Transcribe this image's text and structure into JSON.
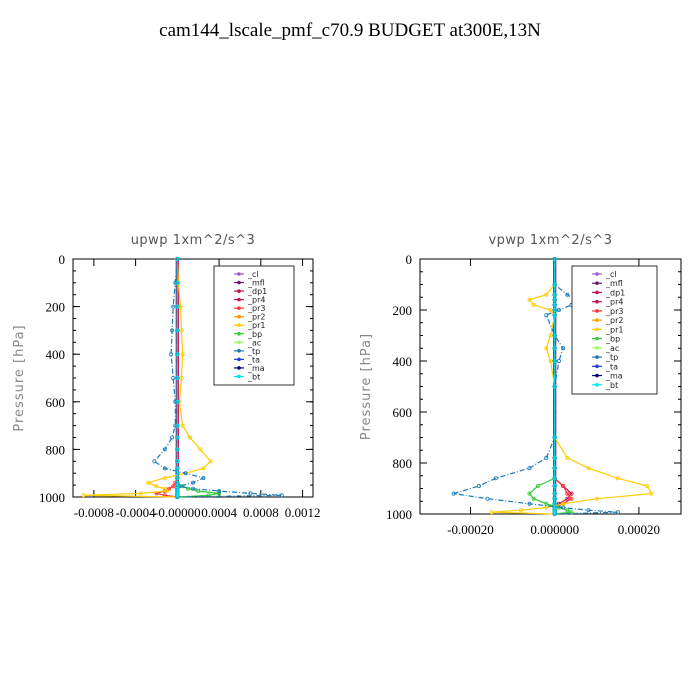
{
  "page": {
    "title": "cam144_lscale_pmf_c70.9  BUDGET at300E,13N"
  },
  "legend_entries": [
    {
      "label": "_cl",
      "color": "#9b59d0"
    },
    {
      "label": "_mfl",
      "color": "#6a1a6a"
    },
    {
      "label": "_dp1",
      "color": "#c0144c"
    },
    {
      "label": "_pr4",
      "color": "#c0144c"
    },
    {
      "label": "_pr3",
      "color": "#ff3333"
    },
    {
      "label": "_pr2",
      "color": "#ff9900"
    },
    {
      "label": "_pr1",
      "color": "#ffcc00"
    },
    {
      "label": "_bp",
      "color": "#33cc33"
    },
    {
      "label": "_ac",
      "color": "#99ff66"
    },
    {
      "label": "_tp",
      "color": "#1a7ab8"
    },
    {
      "label": "_ta",
      "color": "#1f3fd6"
    },
    {
      "label": "_ma",
      "color": "#000080"
    },
    {
      "label": "_bt",
      "color": "#00e5ee"
    }
  ],
  "chart_data": [
    {
      "type": "line",
      "title": "upwp   1xm^2/s^3",
      "ylabel": "Pressure [hPa]",
      "xlabel": "",
      "xlim": [
        -0.001,
        0.0013
      ],
      "ylim": [
        1000,
        0
      ],
      "y_inverted": true,
      "xticks": [
        -0.0008,
        -0.0004,
        0,
        0.0004,
        0.0008,
        0.0012
      ],
      "xtick_labels": [
        "-0.0008",
        "-0.0004",
        "-0.00000",
        "0.0004",
        "0.0008",
        "0.0012"
      ],
      "yticks": [
        0,
        200,
        400,
        600,
        800,
        1000
      ],
      "ytick_labels": [
        "0",
        "200",
        "400",
        "600",
        "800",
        "1000"
      ],
      "legend_position": "top-right",
      "pressure": [
        0,
        100,
        200,
        300,
        400,
        500,
        600,
        700,
        750,
        800,
        850,
        880,
        900,
        920,
        940,
        955,
        965,
        975,
        985,
        993,
        1000
      ],
      "series": [
        {
          "name": "_cl",
          "values": [
            0,
            0,
            0,
            0,
            0,
            0,
            0,
            0,
            0,
            0,
            0,
            0,
            0,
            0,
            0,
            0,
            0,
            0,
            0,
            0,
            0
          ]
        },
        {
          "name": "_mfl",
          "values": [
            0,
            0,
            0,
            0,
            0,
            0,
            0,
            0,
            0,
            0,
            0,
            0,
            0,
            0,
            0,
            0,
            0,
            0,
            0,
            0,
            0
          ]
        },
        {
          "name": "_dp1",
          "values": [
            0,
            0,
            0,
            0,
            0,
            0,
            0,
            0,
            0,
            0,
            0,
            0,
            0,
            0,
            0,
            0,
            0,
            0,
            0,
            0,
            0
          ]
        },
        {
          "name": "_pr4",
          "values": [
            0,
            0,
            0,
            0,
            0,
            0,
            0,
            0,
            0,
            0,
            0,
            0,
            0,
            0,
            0,
            0,
            0,
            0,
            0,
            0,
            0
          ]
        },
        {
          "name": "_pr3",
          "values": [
            0,
            0,
            0,
            0,
            0,
            0,
            0,
            0,
            0,
            0,
            0,
            0,
            0,
            0,
            -2e-05,
            -4e-05,
            -8e-05,
            -0.00012,
            -0.0002,
            -0.00012,
            0
          ]
        },
        {
          "name": "_pr2",
          "values": [
            0,
            0,
            0,
            0,
            0,
            0,
            0,
            0,
            0,
            0,
            0,
            0,
            0,
            0,
            0,
            0,
            0,
            0,
            0,
            0,
            0
          ]
        },
        {
          "name": "_pr1",
          "values": [
            0,
            1e-05,
            3e-05,
            4e-05,
            5e-05,
            4e-05,
            2e-05,
            5e-05,
            0.00012,
            0.00022,
            0.00032,
            0.00025,
            8e-05,
            -0.00012,
            -0.00028,
            -0.0002,
            -0.00012,
            -0.0001,
            -0.00035,
            -0.0009,
            0
          ]
        },
        {
          "name": "_bp",
          "values": [
            0,
            0,
            0,
            0,
            0,
            0,
            0,
            0,
            0,
            0,
            0,
            0,
            0,
            0,
            0,
            5e-05,
            0.0001,
            0.0002,
            0.0004,
            0.0003,
            0
          ]
        },
        {
          "name": "_ac",
          "values": [
            0,
            0,
            0,
            0,
            0,
            0,
            0,
            0,
            0,
            0,
            0,
            0,
            0,
            0,
            0,
            0,
            0,
            0,
            0,
            0,
            0
          ]
        },
        {
          "name": "_tp",
          "values": [
            0,
            -2e-05,
            -4e-05,
            -5e-05,
            -6e-05,
            -4e-05,
            -2e-05,
            -2e-05,
            -5e-05,
            -0.00012,
            -0.00022,
            -0.00012,
            8e-05,
            0.00025,
            0.00015,
            2e-05,
            0.00015,
            0.0004,
            0.0007,
            0.001,
            0
          ]
        },
        {
          "name": "_ta",
          "values": [
            0,
            0,
            0,
            0,
            0,
            0,
            0,
            0,
            0,
            0,
            0,
            0,
            0,
            0,
            0,
            0,
            0,
            0,
            0,
            0,
            0
          ]
        },
        {
          "name": "_ma",
          "values": [
            0,
            0,
            0,
            0,
            0,
            0,
            0,
            0,
            0,
            0,
            0,
            0,
            0,
            0,
            0,
            0,
            0,
            0,
            0,
            0,
            0
          ]
        },
        {
          "name": "_bt",
          "values": [
            0,
            0,
            0,
            0,
            0,
            0,
            0,
            0,
            0,
            0,
            0,
            0,
            0,
            0,
            0,
            0,
            0,
            0,
            0,
            0,
            0
          ]
        }
      ]
    },
    {
      "type": "line",
      "title": "vpwp   1xm^2/s^3",
      "ylabel": "Pressure [hPa]",
      "xlabel": "",
      "xlim": [
        -0.00032,
        0.0003
      ],
      "ylim": [
        1000,
        0
      ],
      "y_inverted": true,
      "xticks": [
        -0.0002,
        0,
        0.0002
      ],
      "xtick_labels": [
        "-0.00020",
        "0.000000",
        "0.00020"
      ],
      "yticks": [
        0,
        200,
        400,
        600,
        800,
        1000
      ],
      "ytick_labels": [
        "0",
        "200",
        "400",
        "600",
        "800",
        "1000"
      ],
      "legend_position": "top-right",
      "pressure": [
        0,
        100,
        140,
        160,
        180,
        200,
        220,
        300,
        350,
        400,
        500,
        700,
        780,
        820,
        860,
        890,
        920,
        940,
        960,
        975,
        985,
        993,
        1000
      ],
      "series": [
        {
          "name": "_cl",
          "values": [
            0,
            0,
            0,
            0,
            0,
            0,
            0,
            0,
            0,
            0,
            0,
            0,
            0,
            0,
            0,
            0,
            0,
            0,
            0,
            0,
            0,
            0,
            0
          ]
        },
        {
          "name": "_mfl",
          "values": [
            0,
            0,
            0,
            0,
            0,
            0,
            0,
            0,
            0,
            0,
            0,
            0,
            0,
            0,
            0,
            0,
            0,
            0,
            0,
            0,
            0,
            0,
            0
          ]
        },
        {
          "name": "_dp1",
          "values": [
            0,
            0,
            0,
            0,
            0,
            0,
            0,
            0,
            0,
            0,
            0,
            0,
            0,
            0,
            0,
            0,
            0,
            0,
            0,
            0,
            0,
            0,
            0
          ]
        },
        {
          "name": "_pr4",
          "values": [
            0,
            0,
            0,
            0,
            0,
            0,
            0,
            0,
            0,
            0,
            0,
            0,
            0,
            0,
            0,
            2e-05,
            4e-05,
            3e-05,
            1e-05,
            0,
            0,
            0,
            0
          ]
        },
        {
          "name": "_pr3",
          "values": [
            0,
            0,
            0,
            0,
            0,
            0,
            0,
            0,
            0,
            0,
            0,
            0,
            0,
            0,
            0,
            2e-05,
            3e-05,
            4e-05,
            2e-05,
            0,
            0,
            0,
            0
          ]
        },
        {
          "name": "_pr2",
          "values": [
            0,
            0,
            0,
            0,
            0,
            0,
            0,
            0,
            0,
            0,
            0,
            0,
            0,
            0,
            0,
            0,
            0,
            0,
            0,
            0,
            0,
            0,
            0
          ]
        },
        {
          "name": "_pr1",
          "values": [
            0,
            0,
            -2e-05,
            -6e-05,
            -5e-05,
            -1e-05,
            0,
            -1e-05,
            -2e-05,
            -1e-05,
            0,
            0,
            3e-05,
            8e-05,
            0.00015,
            0.00022,
            0.00023,
            0.0001,
            2e-05,
            -2e-05,
            -8e-05,
            -0.00015,
            0
          ]
        },
        {
          "name": "_bp",
          "values": [
            0,
            0,
            0,
            0,
            0,
            0,
            0,
            0,
            0,
            0,
            0,
            0,
            0,
            0,
            0,
            -4e-05,
            -6e-05,
            -5e-05,
            -2e-05,
            1e-05,
            3e-05,
            4e-05,
            0
          ]
        },
        {
          "name": "_ac",
          "values": [
            0,
            0,
            0,
            0,
            0,
            0,
            0,
            0,
            0,
            0,
            0,
            0,
            0,
            0,
            0,
            0,
            0,
            0,
            0,
            0,
            0,
            0,
            0
          ]
        },
        {
          "name": "_tp",
          "values": [
            0,
            0,
            3e-05,
            5e-05,
            4e-05,
            1e-05,
            -2e-05,
            0,
            2e-05,
            1e-05,
            0,
            0,
            -2e-05,
            -6e-05,
            -0.00014,
            -0.00018,
            -0.00024,
            -0.00016,
            -6e-05,
            2e-05,
            8e-05,
            0.00015,
            0
          ]
        },
        {
          "name": "_ta",
          "values": [
            0,
            0,
            0,
            0,
            0,
            0,
            0,
            0,
            0,
            0,
            0,
            0,
            0,
            0,
            0,
            0,
            0,
            0,
            0,
            0,
            0,
            0,
            0
          ]
        },
        {
          "name": "_ma",
          "values": [
            0,
            0,
            0,
            0,
            0,
            0,
            0,
            0,
            0,
            0,
            0,
            0,
            0,
            0,
            0,
            0,
            0,
            0,
            0,
            0,
            0,
            0,
            0
          ]
        },
        {
          "name": "_bt",
          "values": [
            0,
            0,
            0,
            0,
            0,
            0,
            0,
            0,
            0,
            0,
            0,
            0,
            0,
            0,
            0,
            0,
            0,
            0,
            0,
            0,
            0,
            0,
            0
          ]
        }
      ]
    }
  ]
}
